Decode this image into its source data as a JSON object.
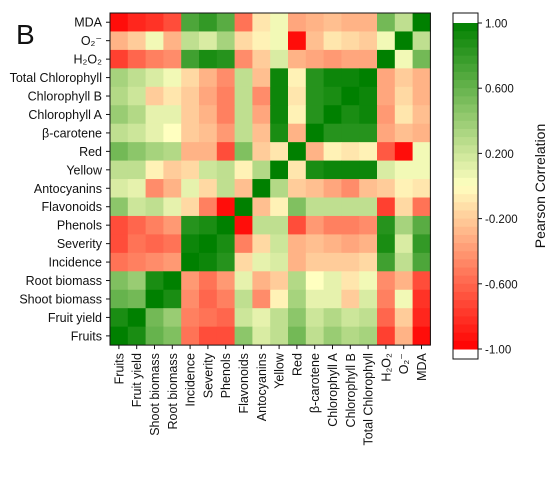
{
  "panel_label": "B",
  "chart_data": {
    "type": "heatmap",
    "rows": [
      "MDA",
      "O₂⁻",
      "H₂O₂",
      "Total Chlorophyll",
      "Chlorophyll B",
      "Chlorophyll A",
      "β-carotene",
      "Red",
      "Yellow",
      "Antocyanins",
      "Flavonoids",
      "Phenols",
      "Severity",
      "Incidence",
      "Root biomass",
      "Shoot biomass",
      "Fruit yield",
      "Fruits"
    ],
    "columns": [
      "Fruits",
      "Fruit yield",
      "Shoot biomass",
      "Root biomass",
      "Incidence",
      "Severity",
      "Phenols",
      "Flavonoids",
      "Antocyanins",
      "Yellow",
      "Red",
      "β-carotene",
      "Chlorophyll A",
      "Chlorophyll B",
      "Total Chlorophyll",
      "H₂O₂",
      "O₂⁻",
      "MDA"
    ],
    "values": [
      [
        -0.95,
        -0.85,
        -0.8,
        -0.7,
        0.7,
        0.8,
        0.65,
        -0.55,
        -0.1,
        0.05,
        -0.35,
        -0.3,
        -0.25,
        -0.3,
        -0.3,
        0.55,
        0.25,
        1.0
      ],
      [
        -0.3,
        -0.2,
        0.05,
        -0.3,
        0.25,
        0.15,
        0.35,
        -0.15,
        -0.05,
        0.05,
        -0.95,
        -0.25,
        -0.1,
        -0.15,
        -0.2,
        0.05,
        1.0,
        0.25
      ],
      [
        -0.75,
        -0.6,
        -0.5,
        -0.45,
        0.75,
        0.9,
        0.85,
        -0.45,
        -0.2,
        0.15,
        -0.3,
        -0.35,
        -0.4,
        -0.35,
        -0.35,
        1.0,
        0.05,
        0.55
      ],
      [
        0.35,
        0.25,
        0.15,
        0.05,
        -0.15,
        -0.3,
        -0.45,
        0.25,
        -0.25,
        0.95,
        -0.05,
        0.85,
        0.95,
        0.95,
        1.0,
        -0.35,
        -0.2,
        -0.3
      ],
      [
        0.3,
        0.2,
        -0.2,
        -0.1,
        -0.2,
        -0.35,
        -0.5,
        0.25,
        -0.45,
        0.95,
        -0.1,
        0.85,
        0.9,
        1.0,
        0.95,
        -0.35,
        -0.15,
        -0.3
      ],
      [
        0.4,
        0.3,
        0.1,
        0.1,
        -0.2,
        -0.3,
        -0.5,
        0.25,
        -0.35,
        0.95,
        -0.05,
        0.85,
        1.0,
        0.9,
        0.95,
        -0.4,
        -0.1,
        -0.25
      ],
      [
        0.25,
        0.2,
        0.1,
        0.0,
        -0.2,
        -0.25,
        -0.4,
        0.25,
        -0.25,
        0.9,
        -0.3,
        1.0,
        0.85,
        0.85,
        0.85,
        -0.35,
        -0.25,
        -0.3
      ],
      [
        0.55,
        0.45,
        0.35,
        0.3,
        -0.3,
        -0.3,
        -0.7,
        0.5,
        -0.2,
        -0.1,
        1.0,
        -0.3,
        -0.05,
        -0.1,
        -0.05,
        -0.65,
        -0.95,
        0.05
      ],
      [
        0.25,
        0.25,
        -0.05,
        -0.2,
        -0.15,
        0.2,
        0.25,
        -0.05,
        0.3,
        1.0,
        -0.1,
        0.9,
        0.95,
        0.95,
        0.95,
        0.15,
        0.05,
        0.05
      ],
      [
        0.15,
        0.1,
        -0.45,
        -0.3,
        0.1,
        -0.15,
        0.25,
        -0.25,
        1.0,
        0.3,
        -0.2,
        -0.25,
        -0.35,
        -0.45,
        -0.25,
        -0.2,
        -0.05,
        -0.1
      ],
      [
        0.45,
        0.2,
        0.25,
        0.1,
        -0.15,
        -0.5,
        -0.95,
        1.0,
        -0.25,
        -0.05,
        0.5,
        0.25,
        0.25,
        0.25,
        0.25,
        -0.75,
        -0.15,
        -0.55
      ],
      [
        -0.7,
        -0.6,
        -0.5,
        -0.4,
        0.85,
        0.9,
        1.0,
        -0.95,
        0.25,
        0.25,
        -0.7,
        -0.4,
        -0.5,
        -0.5,
        -0.45,
        0.85,
        0.35,
        0.65
      ],
      [
        -0.7,
        -0.55,
        -0.6,
        -0.55,
        0.95,
        1.0,
        0.9,
        -0.5,
        -0.15,
        0.2,
        -0.3,
        -0.25,
        -0.3,
        -0.35,
        -0.3,
        0.9,
        0.15,
        0.8
      ],
      [
        -0.55,
        -0.5,
        -0.45,
        -0.4,
        1.0,
        0.95,
        0.85,
        -0.15,
        0.1,
        0.15,
        -0.3,
        -0.2,
        -0.2,
        -0.2,
        -0.15,
        0.75,
        0.25,
        0.7
      ],
      [
        0.5,
        0.4,
        0.9,
        1.0,
        -0.4,
        -0.55,
        -0.4,
        0.1,
        -0.3,
        -0.2,
        0.3,
        0.0,
        0.1,
        -0.1,
        0.05,
        -0.45,
        -0.3,
        -0.7
      ],
      [
        0.6,
        0.55,
        1.0,
        0.9,
        -0.45,
        -0.6,
        -0.5,
        0.25,
        -0.45,
        -0.05,
        0.35,
        0.1,
        0.1,
        -0.2,
        0.15,
        -0.5,
        0.05,
        -0.8
      ],
      [
        0.9,
        1.0,
        0.55,
        0.4,
        -0.5,
        -0.55,
        -0.6,
        0.2,
        0.1,
        0.25,
        0.45,
        0.2,
        0.3,
        0.2,
        0.25,
        -0.6,
        -0.2,
        -0.85
      ],
      [
        1.0,
        0.9,
        0.6,
        0.5,
        -0.55,
        -0.7,
        -0.7,
        0.45,
        0.15,
        0.25,
        0.55,
        0.25,
        0.4,
        0.3,
        0.35,
        -0.75,
        -0.3,
        -0.95
      ]
    ],
    "colorbar": {
      "title": "Pearson Correlation",
      "ticks": [
        "1.00",
        "0.600",
        "0.200",
        "-0.200",
        "-0.600",
        "-1.00"
      ],
      "tick_values": [
        1.0,
        0.6,
        0.2,
        -0.2,
        -0.6,
        -1.0
      ],
      "range": [
        -1,
        1
      ],
      "colors": {
        "negative": "#ff0000",
        "mid": "#ffffc0",
        "positive": "#008000",
        "cap": "#ffffff"
      }
    }
  }
}
